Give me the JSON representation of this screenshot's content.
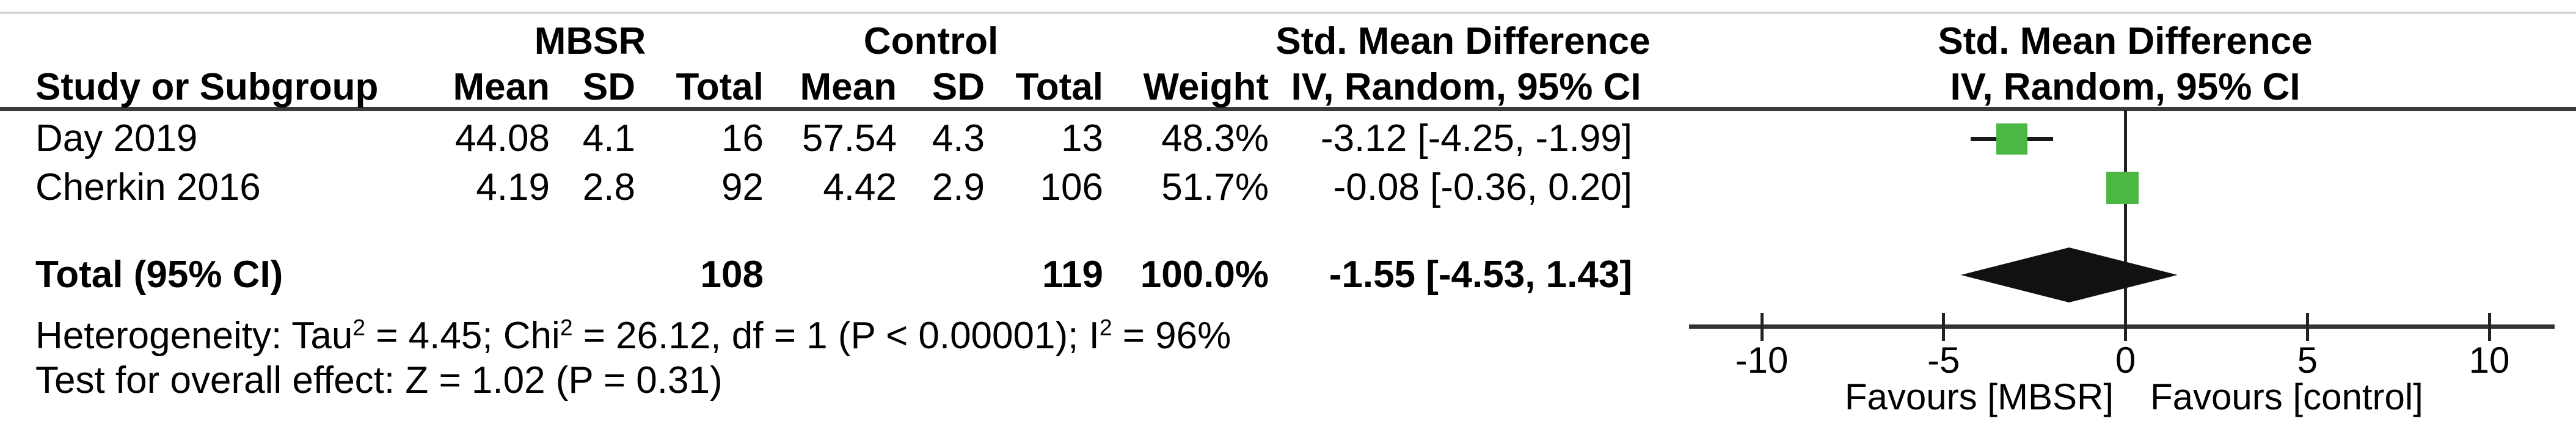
{
  "table": {
    "group_headers": {
      "mbsr": "MBSR",
      "control": "Control",
      "smd_stat": "Std. Mean Difference",
      "smd_plot": "Std. Mean Difference"
    },
    "column_headers": {
      "study": "Study or Subgroup",
      "mbsr": {
        "mean": "Mean",
        "sd": "SD",
        "total": "Total"
      },
      "control": {
        "mean": "Mean",
        "sd": "SD",
        "total": "Total"
      },
      "weight": "Weight",
      "iv_stat": "IV, Random, 95% CI",
      "iv_plot": "IV, Random, 95% CI"
    },
    "rows": [
      {
        "study": "Day 2019",
        "mbsr_mean": "44.08",
        "mbsr_sd": "4.1",
        "mbsr_total": "16",
        "control_mean": "57.54",
        "control_sd": "4.3",
        "control_total": "13",
        "weight": "48.3%",
        "smd_ci": "-3.12 [-4.25, -1.99]"
      },
      {
        "study": "Cherkin 2016",
        "mbsr_mean": "4.19",
        "mbsr_sd": "2.8",
        "mbsr_total": "92",
        "control_mean": "4.42",
        "control_sd": "2.9",
        "control_total": "106",
        "weight": "51.7%",
        "smd_ci": "-0.08 [-0.36, 0.20]"
      }
    ],
    "total_row": {
      "label": "Total (95% CI)",
      "mbsr_total": "108",
      "control_total": "119",
      "weight": "100.0%",
      "smd_ci": "-1.55 [-4.53, 1.43]"
    },
    "heterogeneity_segments": [
      {
        "t": "Heterogeneity: Tau"
      },
      {
        "s": "2"
      },
      {
        "t": " = 4.45; Chi"
      },
      {
        "s": "2"
      },
      {
        "t": " = 26.12, df = 1 (P < 0.00001); I"
      },
      {
        "s": "2"
      },
      {
        "t": " = 96%"
      }
    ],
    "overall_effect": "Test for overall effect: Z = 1.02 (P = 0.31)"
  },
  "chart_data": {
    "type": "forest",
    "title": "Std. Mean Difference",
    "subtitle": "IV, Random, 95% CI",
    "effect_measure": "Std. Mean Difference, IV, Random, 95% CI",
    "axis": {
      "ticks": [
        -10,
        -5,
        0,
        5,
        10
      ],
      "xlim": [
        -12,
        11.8
      ],
      "zero_line": 0
    },
    "studies": [
      {
        "name": "Day 2019",
        "smd": -3.12,
        "ci_low": -4.25,
        "ci_high": -1.99,
        "weight_pct": 48.3
      },
      {
        "name": "Cherkin 2016",
        "smd": -0.08,
        "ci_low": -0.36,
        "ci_high": 0.2,
        "weight_pct": 51.7
      }
    ],
    "total": {
      "label": "Total (95% CI)",
      "smd": -1.55,
      "ci_low": -4.53,
      "ci_high": 1.43,
      "weight_pct": 100.0
    },
    "favours_left": "Favours [MBSR]",
    "favours_right": "Favours [control]",
    "marker_color": "#4bb843",
    "line_color": "#333333"
  }
}
